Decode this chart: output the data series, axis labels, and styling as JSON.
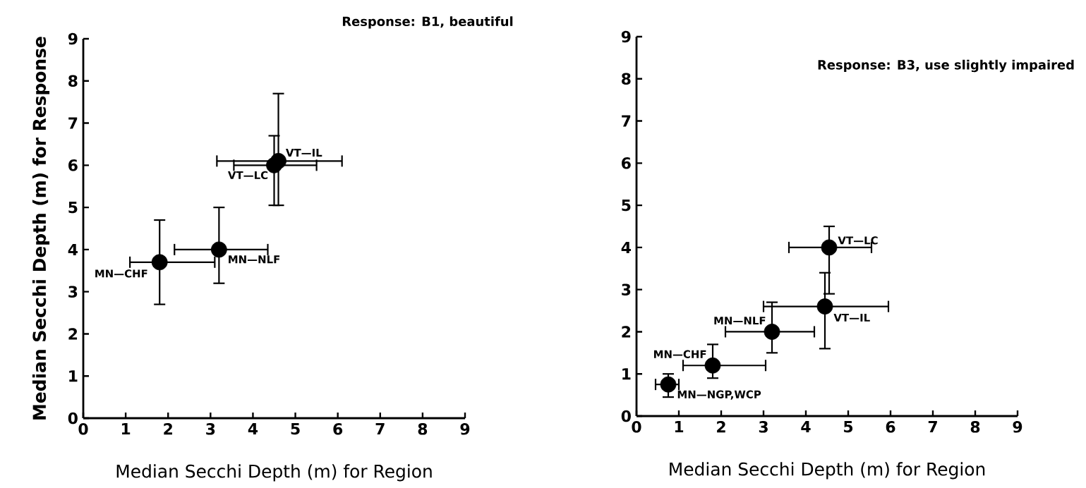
{
  "chart_data": [
    {
      "type": "scatter",
      "title": "Response:  B1, beautiful",
      "xlabel": "Median Secchi Depth (m) for Region",
      "ylabel": "Median Secchi Depth (m) for Response",
      "series": [
        {
          "color": "#000000",
          "x": [
            1.8,
            3.2,
            4.6,
            4.5
          ],
          "values": [
            3.7,
            4.0,
            6.1,
            6.0
          ],
          "xerrors": [
            [
              1.1,
              3.1
            ],
            [
              2.15,
              4.35
            ],
            [
              3.15,
              6.1
            ],
            [
              3.55,
              5.5
            ]
          ],
          "errors": [
            [
              2.7,
              4.7
            ],
            [
              3.2,
              5.0
            ],
            [
              5.05,
              7.7
            ],
            [
              5.05,
              6.7
            ]
          ]
        }
      ],
      "annotations": [
        {
          "text": "MN—CHF",
          "x": 1.8,
          "y": 3.7
        },
        {
          "text": "MN—NLF",
          "x": 3.2,
          "y": 4.0
        },
        {
          "text": "VT—IL",
          "x": 4.6,
          "y": 6.1
        },
        {
          "text": "VT—LC",
          "x": 4.5,
          "y": 6.0
        }
      ],
      "xlim": [
        0,
        9
      ],
      "ylim": [
        0,
        9
      ],
      "xticks": [
        0,
        1,
        2,
        3,
        4,
        5,
        6,
        7,
        8,
        9
      ],
      "yticks": [
        0,
        1,
        2,
        3,
        4,
        5,
        6,
        7,
        8,
        9
      ],
      "marker": "circle",
      "grid": false
    },
    {
      "type": "scatter",
      "title": "Response:  B3, use slightly impaired",
      "xlabel": "Median Secchi Depth (m) for Region",
      "series": [
        {
          "color": "#000000",
          "x": [
            0.75,
            1.8,
            3.2,
            4.45,
            4.55
          ],
          "values": [
            0.75,
            1.2,
            2.0,
            2.6,
            4.0
          ],
          "xerrors": [
            [
              0.45,
              1.0
            ],
            [
              1.1,
              3.05
            ],
            [
              2.1,
              4.2
            ],
            [
              3.0,
              5.95
            ],
            [
              3.6,
              5.55
            ]
          ],
          "errors": [
            [
              0.45,
              1.0
            ],
            [
              0.9,
              1.7
            ],
            [
              1.5,
              2.7
            ],
            [
              1.6,
              3.4
            ],
            [
              2.9,
              4.5
            ]
          ]
        }
      ],
      "annotations": [
        {
          "text": "MN—NGP,WCP",
          "x": 0.75,
          "y": 0.75
        },
        {
          "text": "MN—CHF",
          "x": 1.8,
          "y": 1.2
        },
        {
          "text": "MN—NLF",
          "x": 3.2,
          "y": 2.0
        },
        {
          "text": "VT—IL",
          "x": 4.45,
          "y": 2.6
        },
        {
          "text": "VT—LC",
          "x": 4.55,
          "y": 4.0
        }
      ],
      "xlim": [
        0,
        9
      ],
      "ylim": [
        0,
        9
      ],
      "xticks": [
        0,
        1,
        2,
        3,
        4,
        5,
        6,
        7,
        8,
        9
      ],
      "yticks": [
        0,
        1,
        2,
        3,
        4,
        5,
        6,
        7,
        8,
        9
      ],
      "marker": "circle",
      "grid": false
    }
  ]
}
